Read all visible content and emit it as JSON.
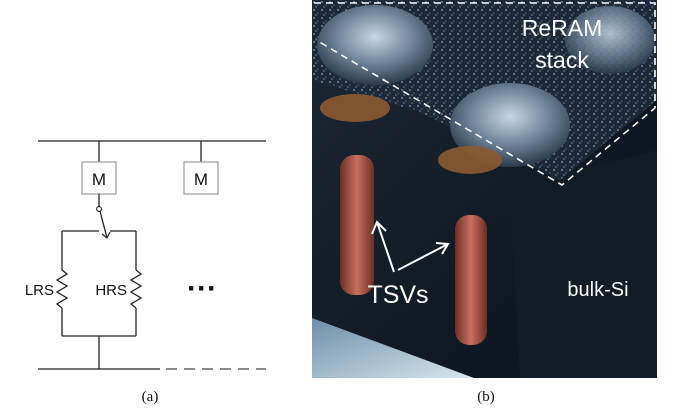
{
  "panel_a": {
    "memory_label_1": "M",
    "memory_label_2": "M",
    "resistor_low": "LRS",
    "resistor_high": "HRS",
    "ellipsis": "···",
    "caption": "(a)"
  },
  "panel_b": {
    "stack_label_line1": "ReRAM",
    "stack_label_line2": "stack",
    "tsv_label": "TSVs",
    "substrate_label": "bulk-Si",
    "caption": "(b)"
  },
  "colors": {
    "line": "#222222",
    "box": "#999999",
    "photo_dark": "#0d1622",
    "tsv_copper": "#b0584a",
    "label_white": "#ffffff"
  }
}
